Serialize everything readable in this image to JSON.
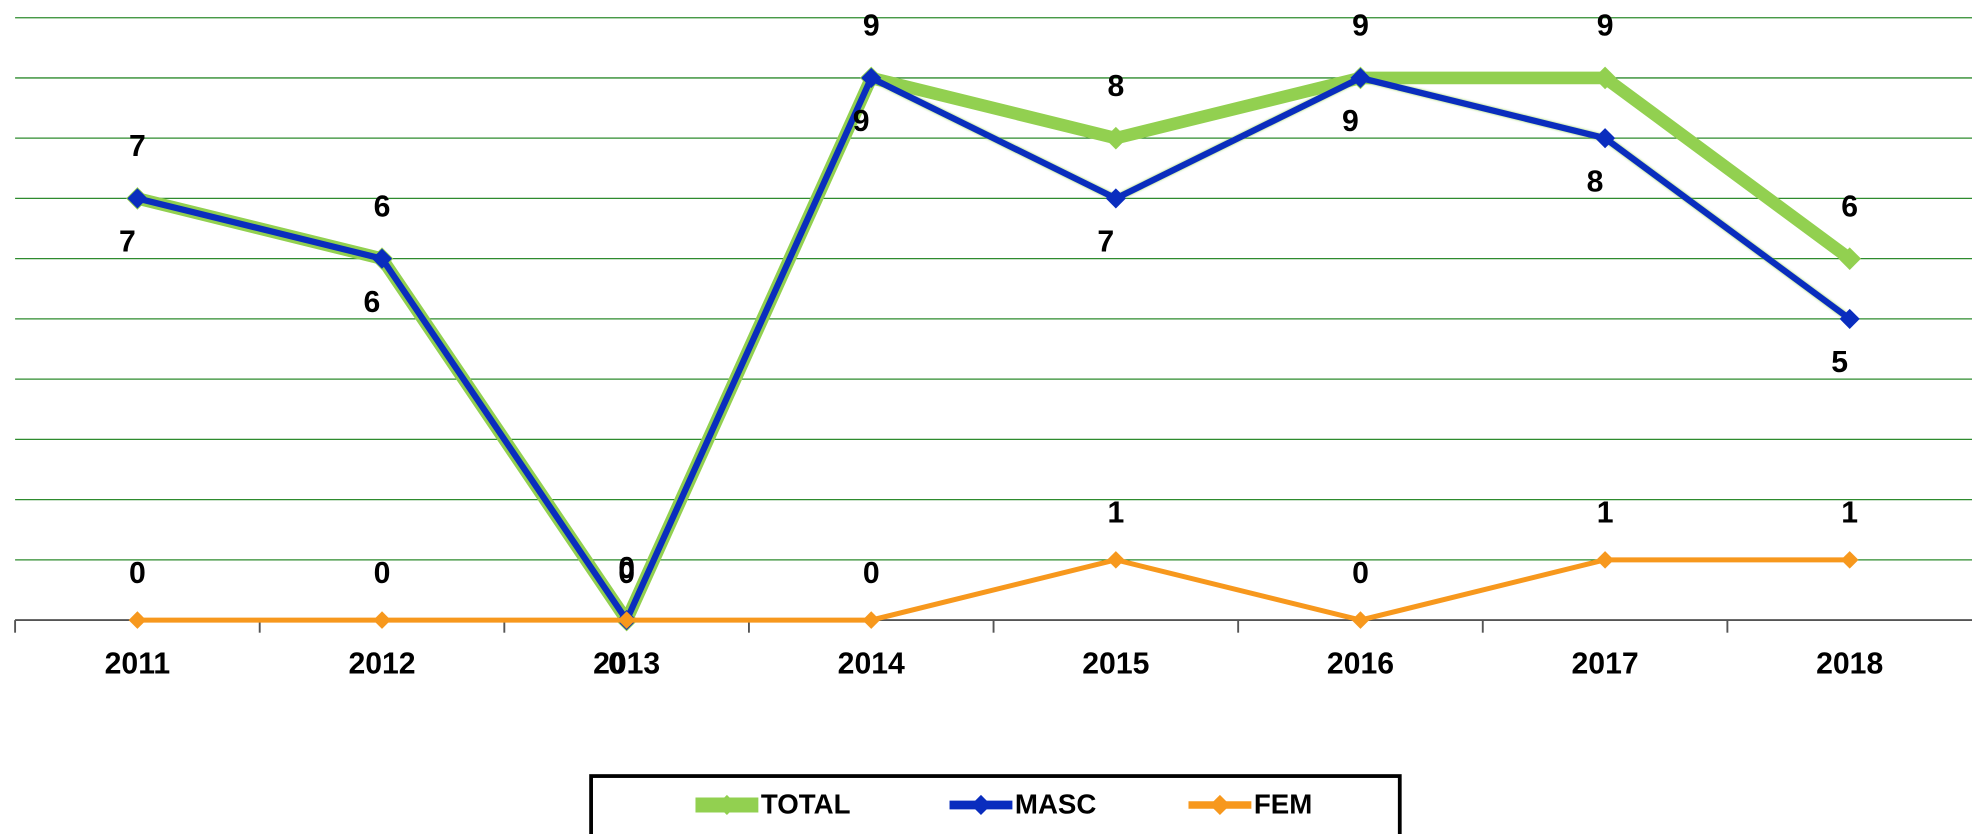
{
  "chart_data": {
    "type": "line",
    "categories": [
      "2011",
      "2012",
      "2013",
      "2014",
      "2015",
      "2016",
      "2017",
      "2018"
    ],
    "series": [
      {
        "name": "TOTAL",
        "color": "#92d050",
        "values": [
          7,
          6,
          0,
          9,
          8,
          9,
          9,
          6
        ]
      },
      {
        "name": "MASC",
        "color": "#0a2dbe",
        "values": [
          7,
          6,
          0,
          9,
          7,
          9,
          8,
          5
        ]
      },
      {
        "name": "FEM",
        "color": "#f7981d",
        "values": [
          0,
          0,
          0,
          0,
          1,
          0,
          1,
          1
        ]
      }
    ],
    "ylim": [
      0,
      10
    ],
    "yticks": [
      0,
      1,
      2,
      3,
      4,
      5,
      6,
      7,
      8,
      9,
      10
    ],
    "grid": true,
    "grid_color": "#2e8b2e",
    "legend": "bottom"
  }
}
